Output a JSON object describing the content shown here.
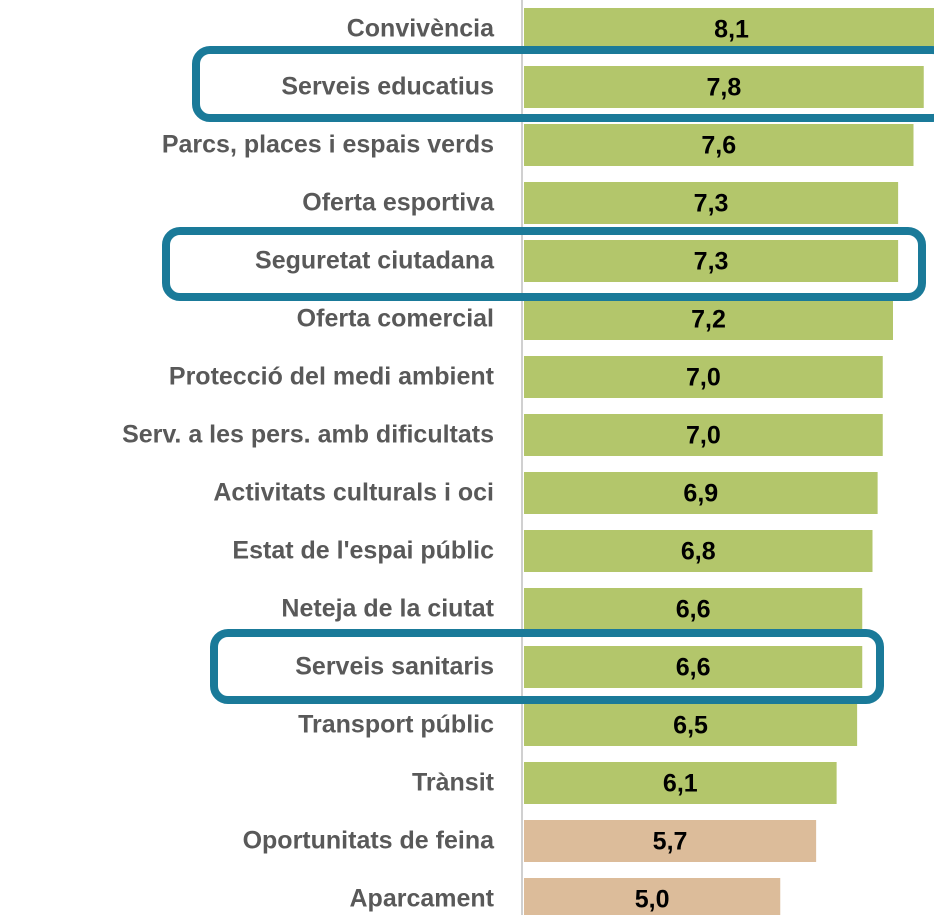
{
  "chart_data": {
    "type": "bar",
    "orientation": "horizontal",
    "categories": [
      "Convivència",
      "Serveis educatius",
      "Parcs, places i espais verds",
      "Oferta esportiva",
      "Seguretat ciutadana",
      "Oferta comercial",
      "Protecció del medi ambient",
      "Serv. a les pers. amb dificultats",
      "Activitats culturals i oci",
      "Estat de l'espai públic",
      "Neteja de la ciutat",
      "Serveis sanitaris",
      "Transport públic",
      "Trànsit",
      "Oportunitats de feina",
      "Aparcament"
    ],
    "values": [
      8.1,
      7.8,
      7.6,
      7.3,
      7.3,
      7.2,
      7.0,
      7.0,
      6.9,
      6.8,
      6.6,
      6.6,
      6.5,
      6.1,
      5.7,
      5.0
    ],
    "value_labels": [
      "8,1",
      "7,8",
      "7,6",
      "7,3",
      "7,3",
      "7,2",
      "7,0",
      "7,0",
      "6,9",
      "6,8",
      "6,6",
      "6,6",
      "6,5",
      "6,1",
      "5,7",
      "5,0"
    ],
    "colors": [
      "#b3c66b",
      "#b3c66b",
      "#b3c66b",
      "#b3c66b",
      "#b3c66b",
      "#b3c66b",
      "#b3c66b",
      "#b3c66b",
      "#b3c66b",
      "#b3c66b",
      "#b3c66b",
      "#b3c66b",
      "#b3c66b",
      "#b3c66b",
      "#dcbc9a",
      "#dcbc9a"
    ],
    "xlim": [
      0,
      8
    ]
  }
}
